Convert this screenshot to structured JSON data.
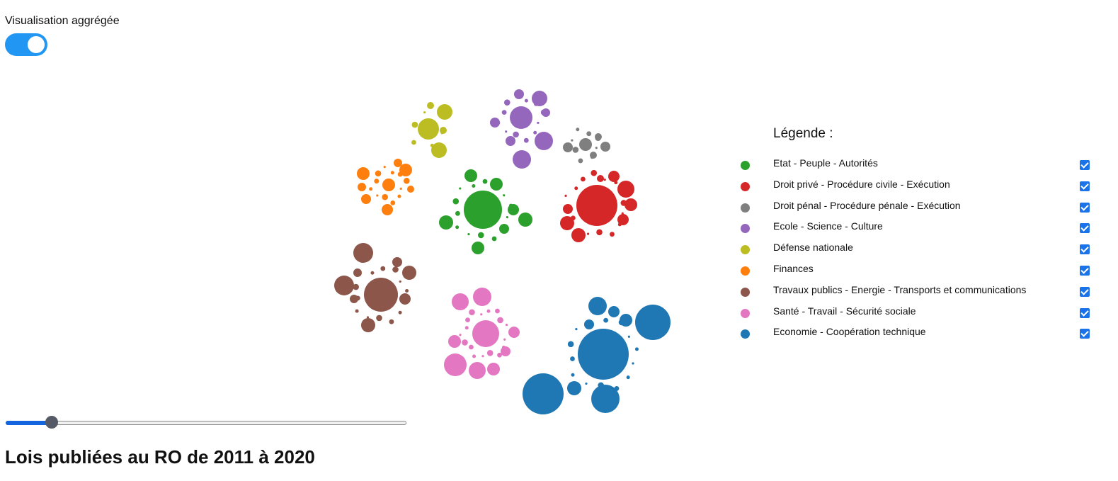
{
  "toggle": {
    "label": "Visualisation aggrégée",
    "on": true
  },
  "legend": {
    "title": "Légende :",
    "items": [
      {
        "label": "Etat - Peuple - Autorités",
        "color": "#2ca02c",
        "checked": true
      },
      {
        "label": "Droit privé - Procédure civile - Exécution",
        "color": "#d62728",
        "checked": true
      },
      {
        "label": "Droit pénal - Procédure pénale - Exécution",
        "color": "#7f7f7f",
        "checked": true
      },
      {
        "label": "Ecole - Science - Culture",
        "color": "#9467bd",
        "checked": true
      },
      {
        "label": "Défense nationale",
        "color": "#bcbd22",
        "checked": true
      },
      {
        "label": "Finances",
        "color": "#ff7f0e",
        "checked": true
      },
      {
        "label": "Travaux publics - Energie - Transports et communications",
        "color": "#8c564b",
        "checked": true
      },
      {
        "label": "Santé - Travail - Sécurité sociale",
        "color": "#e377c2",
        "checked": true
      },
      {
        "label": "Economie - Coopération technique",
        "color": "#1f77b4",
        "checked": true
      }
    ]
  },
  "slider": {
    "value_fraction": 0.115
  },
  "title": "Lois publiées au RO de 2011 à 2020"
}
